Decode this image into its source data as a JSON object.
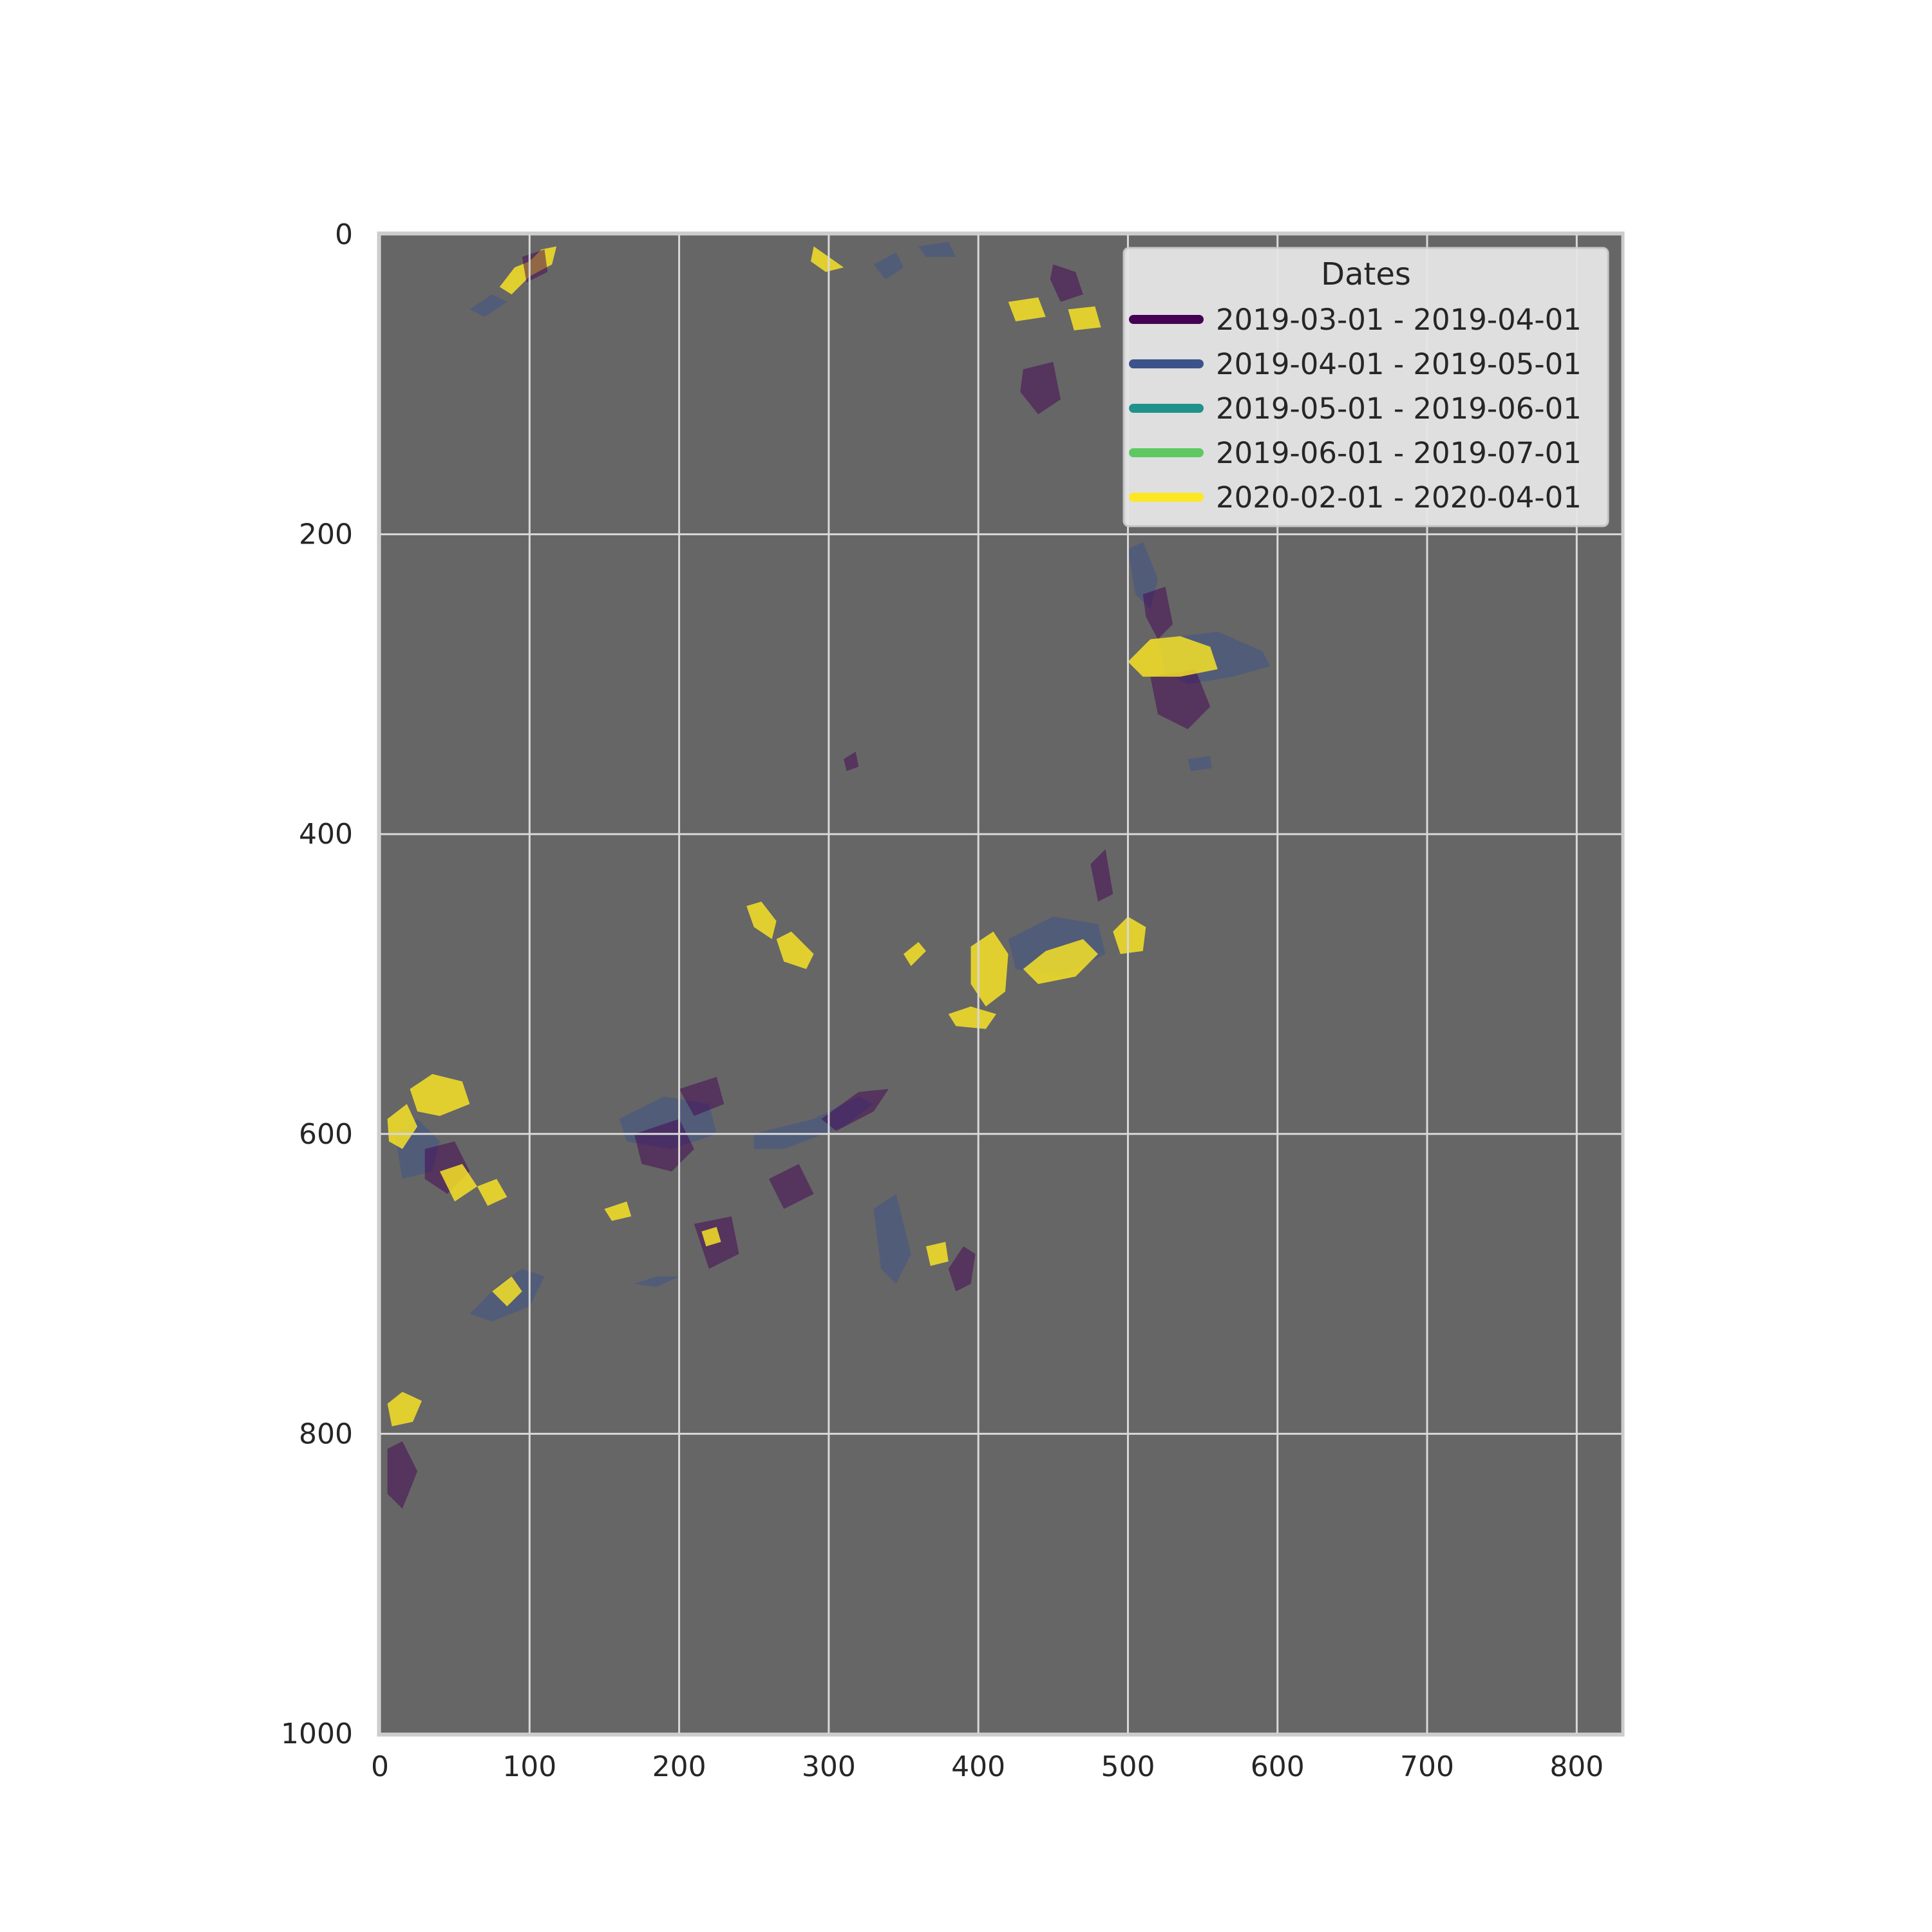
{
  "chart_data": {
    "type": "heatmap",
    "title": "",
    "xlabel": "",
    "ylabel": "",
    "xlim": [
      0,
      830
    ],
    "ylim": [
      1000,
      0
    ],
    "x_ticks": [
      "0",
      "100",
      "200",
      "300",
      "400",
      "500",
      "600",
      "700",
      "800"
    ],
    "y_ticks": [
      "0",
      "200",
      "400",
      "600",
      "800",
      "1000"
    ],
    "x_tick_values": [
      0,
      100,
      200,
      300,
      400,
      500,
      600,
      700,
      800
    ],
    "y_tick_values": [
      0,
      200,
      400,
      600,
      800,
      1000
    ],
    "grid": true,
    "background_color": "#666666",
    "legend": {
      "title": "Dates",
      "placement": "top-right",
      "entries": [
        {
          "label": "2019-03-01 - 2019-04-01",
          "color": "#440154"
        },
        {
          "label": "2019-04-01 - 2019-05-01",
          "color": "#3b528b"
        },
        {
          "label": "2019-05-01 - 2019-06-01",
          "color": "#21918c"
        },
        {
          "label": "2019-06-01 - 2019-07-01",
          "color": "#5ec962"
        },
        {
          "label": "2020-02-01 - 2020-04-01",
          "color": "#fde725"
        }
      ]
    },
    "regions": [
      {
        "period": 4,
        "points": [
          [
            80,
            35
          ],
          [
            90,
            22
          ],
          [
            100,
            18
          ],
          [
            108,
            10
          ],
          [
            118,
            8
          ],
          [
            115,
            20
          ],
          [
            100,
            28
          ],
          [
            88,
            40
          ]
        ]
      },
      {
        "period": 0,
        "points": [
          [
            95,
            15
          ],
          [
            110,
            10
          ],
          [
            112,
            25
          ],
          [
            98,
            32
          ]
        ]
      },
      {
        "period": 1,
        "points": [
          [
            60,
            50
          ],
          [
            75,
            40
          ],
          [
            85,
            45
          ],
          [
            70,
            55
          ]
        ]
      },
      {
        "period": 4,
        "points": [
          [
            290,
            8
          ],
          [
            300,
            15
          ],
          [
            310,
            22
          ],
          [
            298,
            25
          ],
          [
            288,
            18
          ]
        ]
      },
      {
        "period": 1,
        "points": [
          [
            330,
            20
          ],
          [
            345,
            12
          ],
          [
            350,
            22
          ],
          [
            338,
            30
          ]
        ]
      },
      {
        "period": 1,
        "points": [
          [
            360,
            8
          ],
          [
            380,
            5
          ],
          [
            385,
            15
          ],
          [
            365,
            15
          ]
        ]
      },
      {
        "period": 4,
        "points": [
          [
            420,
            45
          ],
          [
            440,
            42
          ],
          [
            445,
            55
          ],
          [
            425,
            58
          ]
        ]
      },
      {
        "period": 4,
        "points": [
          [
            460,
            50
          ],
          [
            478,
            48
          ],
          [
            482,
            62
          ],
          [
            464,
            64
          ]
        ]
      },
      {
        "period": 0,
        "points": [
          [
            450,
            20
          ],
          [
            465,
            25
          ],
          [
            470,
            40
          ],
          [
            455,
            45
          ],
          [
            448,
            30
          ]
        ]
      },
      {
        "period": 0,
        "points": [
          [
            430,
            90
          ],
          [
            450,
            85
          ],
          [
            455,
            110
          ],
          [
            440,
            120
          ],
          [
            428,
            105
          ]
        ]
      },
      {
        "period": 1,
        "points": [
          [
            500,
            210
          ],
          [
            510,
            205
          ],
          [
            520,
            230
          ],
          [
            515,
            250
          ],
          [
            505,
            240
          ]
        ]
      },
      {
        "period": 0,
        "points": [
          [
            510,
            240
          ],
          [
            525,
            235
          ],
          [
            530,
            260
          ],
          [
            520,
            270
          ],
          [
            512,
            255
          ]
        ]
      },
      {
        "period": 1,
        "points": [
          [
            520,
            270
          ],
          [
            560,
            265
          ],
          [
            590,
            278
          ],
          [
            595,
            288
          ],
          [
            570,
            295
          ],
          [
            540,
            300
          ],
          [
            525,
            292
          ]
        ]
      },
      {
        "period": 0,
        "points": [
          [
            515,
            295
          ],
          [
            545,
            290
          ],
          [
            555,
            315
          ],
          [
            540,
            330
          ],
          [
            520,
            320
          ]
        ]
      },
      {
        "period": 4,
        "points": [
          [
            500,
            285
          ],
          [
            515,
            270
          ],
          [
            535,
            268
          ],
          [
            555,
            275
          ],
          [
            560,
            290
          ],
          [
            535,
            295
          ],
          [
            510,
            295
          ]
        ]
      },
      {
        "period": 4,
        "points": [
          [
            245,
            448
          ],
          [
            255,
            445
          ],
          [
            265,
            458
          ],
          [
            262,
            470
          ],
          [
            250,
            462
          ]
        ]
      },
      {
        "period": 4,
        "points": [
          [
            265,
            470
          ],
          [
            275,
            465
          ],
          [
            290,
            480
          ],
          [
            285,
            490
          ],
          [
            270,
            485
          ]
        ]
      },
      {
        "period": 4,
        "points": [
          [
            350,
            480
          ],
          [
            360,
            472
          ],
          [
            365,
            478
          ],
          [
            355,
            488
          ]
        ]
      },
      {
        "period": 1,
        "points": [
          [
            420,
            470
          ],
          [
            450,
            455
          ],
          [
            480,
            460
          ],
          [
            485,
            480
          ],
          [
            455,
            495
          ],
          [
            425,
            490
          ]
        ]
      },
      {
        "period": 4,
        "points": [
          [
            395,
            475
          ],
          [
            410,
            465
          ],
          [
            420,
            480
          ],
          [
            418,
            505
          ],
          [
            405,
            515
          ],
          [
            395,
            500
          ]
        ]
      },
      {
        "period": 4,
        "points": [
          [
            430,
            490
          ],
          [
            445,
            478
          ],
          [
            470,
            470
          ],
          [
            480,
            480
          ],
          [
            465,
            495
          ],
          [
            440,
            500
          ]
        ]
      },
      {
        "period": 4,
        "points": [
          [
            490,
            465
          ],
          [
            500,
            455
          ],
          [
            512,
            462
          ],
          [
            510,
            478
          ],
          [
            495,
            480
          ]
        ]
      },
      {
        "period": 0,
        "points": [
          [
            475,
            420
          ],
          [
            485,
            410
          ],
          [
            490,
            440
          ],
          [
            480,
            445
          ]
        ]
      },
      {
        "period": 4,
        "points": [
          [
            380,
            520
          ],
          [
            395,
            515
          ],
          [
            412,
            520
          ],
          [
            405,
            530
          ],
          [
            385,
            528
          ]
        ]
      },
      {
        "period": 4,
        "points": [
          [
            20,
            570
          ],
          [
            35,
            560
          ],
          [
            55,
            565
          ],
          [
            60,
            580
          ],
          [
            40,
            588
          ],
          [
            25,
            585
          ]
        ]
      },
      {
        "period": 1,
        "points": [
          [
            10,
            600
          ],
          [
            25,
            590
          ],
          [
            40,
            605
          ],
          [
            35,
            625
          ],
          [
            15,
            630
          ]
        ]
      },
      {
        "period": 4,
        "points": [
          [
            5,
            590
          ],
          [
            18,
            580
          ],
          [
            25,
            595
          ],
          [
            15,
            610
          ],
          [
            6,
            605
          ]
        ]
      },
      {
        "period": 0,
        "points": [
          [
            30,
            610
          ],
          [
            50,
            605
          ],
          [
            60,
            625
          ],
          [
            45,
            640
          ],
          [
            30,
            630
          ]
        ]
      },
      {
        "period": 4,
        "points": [
          [
            40,
            625
          ],
          [
            55,
            620
          ],
          [
            65,
            635
          ],
          [
            50,
            645
          ]
        ]
      },
      {
        "period": 4,
        "points": [
          [
            65,
            635
          ],
          [
            78,
            630
          ],
          [
            85,
            642
          ],
          [
            72,
            648
          ]
        ]
      },
      {
        "period": 1,
        "points": [
          [
            60,
            720
          ],
          [
            80,
            700
          ],
          [
            95,
            690
          ],
          [
            110,
            695
          ],
          [
            100,
            715
          ],
          [
            75,
            725
          ]
        ]
      },
      {
        "period": 4,
        "points": [
          [
            75,
            705
          ],
          [
            88,
            695
          ],
          [
            95,
            705
          ],
          [
            85,
            715
          ]
        ]
      },
      {
        "period": 4,
        "points": [
          [
            5,
            780
          ],
          [
            15,
            772
          ],
          [
            28,
            778
          ],
          [
            22,
            792
          ],
          [
            8,
            795
          ]
        ]
      },
      {
        "period": 0,
        "points": [
          [
            5,
            810
          ],
          [
            15,
            805
          ],
          [
            25,
            825
          ],
          [
            15,
            850
          ],
          [
            5,
            840
          ]
        ]
      },
      {
        "period": 1,
        "points": [
          [
            160,
            590
          ],
          [
            190,
            575
          ],
          [
            220,
            580
          ],
          [
            225,
            600
          ],
          [
            195,
            610
          ],
          [
            165,
            605
          ]
        ]
      },
      {
        "period": 0,
        "points": [
          [
            170,
            600
          ],
          [
            200,
            590
          ],
          [
            210,
            610
          ],
          [
            195,
            625
          ],
          [
            175,
            620
          ]
        ]
      },
      {
        "period": 0,
        "points": [
          [
            200,
            570
          ],
          [
            225,
            562
          ],
          [
            230,
            580
          ],
          [
            210,
            588
          ]
        ]
      },
      {
        "period": 1,
        "points": [
          [
            250,
            600
          ],
          [
            290,
            590
          ],
          [
            320,
            575
          ],
          [
            330,
            580
          ],
          [
            310,
            595
          ],
          [
            270,
            610
          ],
          [
            250,
            610
          ]
        ]
      },
      {
        "period": 0,
        "points": [
          [
            295,
            590
          ],
          [
            320,
            572
          ],
          [
            340,
            570
          ],
          [
            330,
            585
          ],
          [
            305,
            598
          ]
        ]
      },
      {
        "period": 0,
        "points": [
          [
            210,
            660
          ],
          [
            235,
            655
          ],
          [
            240,
            680
          ],
          [
            220,
            690
          ]
        ]
      },
      {
        "period": 4,
        "points": [
          [
            215,
            665
          ],
          [
            225,
            662
          ],
          [
            228,
            672
          ],
          [
            218,
            675
          ]
        ]
      },
      {
        "period": 0,
        "points": [
          [
            260,
            630
          ],
          [
            280,
            620
          ],
          [
            290,
            640
          ],
          [
            270,
            650
          ]
        ]
      },
      {
        "period": 1,
        "points": [
          [
            330,
            650
          ],
          [
            345,
            640
          ],
          [
            355,
            680
          ],
          [
            345,
            700
          ],
          [
            335,
            690
          ]
        ]
      },
      {
        "period": 0,
        "points": [
          [
            380,
            690
          ],
          [
            390,
            675
          ],
          [
            398,
            680
          ],
          [
            395,
            700
          ],
          [
            385,
            705
          ]
        ]
      },
      {
        "period": 4,
        "points": [
          [
            365,
            675
          ],
          [
            378,
            672
          ],
          [
            380,
            685
          ],
          [
            368,
            688
          ]
        ]
      },
      {
        "period": 1,
        "points": [
          [
            170,
            700
          ],
          [
            185,
            695
          ],
          [
            200,
            695
          ],
          [
            185,
            702
          ]
        ]
      },
      {
        "period": 4,
        "points": [
          [
            150,
            650
          ],
          [
            165,
            645
          ],
          [
            168,
            655
          ],
          [
            155,
            658
          ]
        ]
      },
      {
        "period": 1,
        "points": [
          [
            540,
            350
          ],
          [
            555,
            348
          ],
          [
            556,
            356
          ],
          [
            542,
            358
          ]
        ]
      },
      {
        "period": 0,
        "points": [
          [
            310,
            350
          ],
          [
            318,
            345
          ],
          [
            320,
            355
          ],
          [
            312,
            358
          ]
        ]
      }
    ]
  }
}
